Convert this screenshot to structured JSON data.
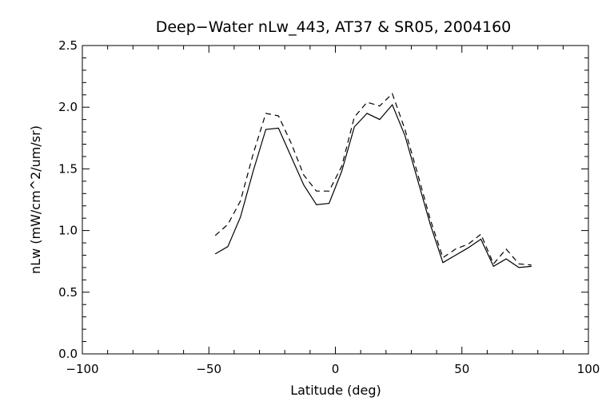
{
  "chart_data": {
    "type": "line",
    "title": "Deep−Water nLw_443, AT37 & SR05, 2004160",
    "xlabel": "Latitude (deg)",
    "ylabel": "nLw (mW/cm^2/um/sr)",
    "xlim": [
      -100,
      100
    ],
    "ylim": [
      0.0,
      2.5
    ],
    "x_ticks": [
      -100,
      -50,
      0,
      50,
      100
    ],
    "x_tick_labels": [
      "−100",
      "−50",
      "0",
      "50",
      "100"
    ],
    "y_ticks": [
      0.0,
      0.5,
      1.0,
      1.5,
      2.0,
      2.5
    ],
    "y_tick_labels": [
      "0.0",
      "0.5",
      "1.0",
      "1.5",
      "2.0",
      "2.5"
    ],
    "grid": false,
    "legend": "none",
    "series": [
      {
        "style": "solid",
        "color": "#000000",
        "points": [
          [
            -47.5,
            0.81
          ],
          [
            -42.5,
            0.87
          ],
          [
            -37.5,
            1.11
          ],
          [
            -32.5,
            1.48
          ],
          [
            -27.5,
            1.82
          ],
          [
            -22.5,
            1.83
          ],
          [
            -17.5,
            1.6
          ],
          [
            -12.5,
            1.37
          ],
          [
            -7.5,
            1.21
          ],
          [
            -2.5,
            1.22
          ],
          [
            2.5,
            1.48
          ],
          [
            7.5,
            1.84
          ],
          [
            12.5,
            1.95
          ],
          [
            17.5,
            1.9
          ],
          [
            22.5,
            2.02
          ],
          [
            27.5,
            1.77
          ],
          [
            32.5,
            1.41
          ],
          [
            37.5,
            1.05
          ],
          [
            42.5,
            0.74
          ],
          [
            47.5,
            0.8
          ],
          [
            52.5,
            0.86
          ],
          [
            57.5,
            0.93
          ],
          [
            62.5,
            0.71
          ],
          [
            67.5,
            0.77
          ],
          [
            72.5,
            0.7
          ],
          [
            77.5,
            0.71
          ]
        ]
      },
      {
        "style": "dashed",
        "color": "#000000",
        "points": [
          [
            -47.5,
            0.96
          ],
          [
            -42.5,
            1.05
          ],
          [
            -37.5,
            1.24
          ],
          [
            -32.5,
            1.62
          ],
          [
            -27.5,
            1.95
          ],
          [
            -22.5,
            1.93
          ],
          [
            -17.5,
            1.71
          ],
          [
            -12.5,
            1.45
          ],
          [
            -7.5,
            1.32
          ],
          [
            -2.5,
            1.32
          ],
          [
            2.5,
            1.52
          ],
          [
            7.5,
            1.92
          ],
          [
            12.5,
            2.04
          ],
          [
            17.5,
            2.01
          ],
          [
            22.5,
            2.11
          ],
          [
            27.5,
            1.82
          ],
          [
            32.5,
            1.46
          ],
          [
            37.5,
            1.09
          ],
          [
            42.5,
            0.78
          ],
          [
            47.5,
            0.85
          ],
          [
            52.5,
            0.89
          ],
          [
            57.5,
            0.97
          ],
          [
            62.5,
            0.73
          ],
          [
            67.5,
            0.85
          ],
          [
            72.5,
            0.73
          ],
          [
            77.5,
            0.72
          ]
        ]
      }
    ]
  }
}
